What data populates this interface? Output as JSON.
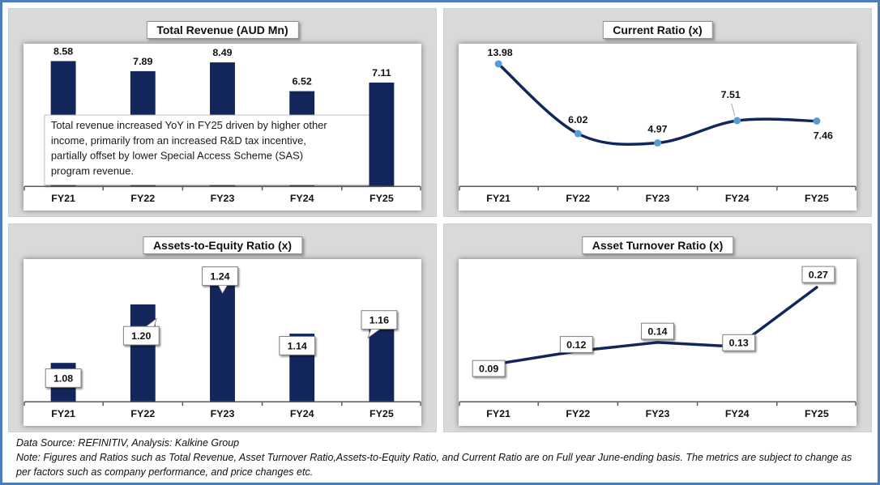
{
  "colors": {
    "navy": "#12265c",
    "marker_blue": "#5b9bd5",
    "panel_gray": "#d9d9d9",
    "outer_border_blue": "#4a7ebb",
    "axis_gray": "#595959"
  },
  "footer": {
    "source_line": "Data Source: REFINITIV, Analysis: Kalkine Group",
    "note_line": "Note: Figures and Ratios such as Total Revenue, Asset Turnover Ratio,Assets-to-Equity Ratio, and Current Ratio are on Full year June-ending basis. The metrics are subject to change as per factors such as company performance, and price changes etc."
  },
  "chart_data": [
    {
      "id": "total-revenue",
      "type": "bar",
      "title": "Total Revenue (AUD Mn)",
      "categories": [
        "FY21",
        "FY22",
        "FY23",
        "FY24",
        "FY25"
      ],
      "values": [
        8.58,
        7.89,
        8.49,
        6.52,
        7.11
      ],
      "labels": [
        "8.58",
        "7.89",
        "8.49",
        "6.52",
        "7.11"
      ],
      "ylim": [
        0,
        9
      ],
      "label_style": "plain",
      "grid": false,
      "legend": false,
      "annotation": "Total revenue increased YoY in FY25 driven by higher other income, primarily from an increased R&D tax incentive, partially offset by lower Special Access Scheme (SAS) program revenue."
    },
    {
      "id": "current-ratio",
      "type": "line",
      "title": "Current Ratio (x)",
      "categories": [
        "FY21",
        "FY22",
        "FY23",
        "FY24",
        "FY25"
      ],
      "values": [
        13.98,
        6.02,
        4.97,
        7.51,
        7.46
      ],
      "labels": [
        "13.98",
        "6.02",
        "4.97",
        "7.51",
        "7.46"
      ],
      "ylim": [
        0,
        15
      ],
      "smooth": true,
      "markers": true,
      "label_style": "plain",
      "grid": false,
      "legend": false
    },
    {
      "id": "assets-to-equity",
      "type": "bar",
      "title": "Assets-to-Equity Ratio (x)",
      "categories": [
        "FY21",
        "FY22",
        "FY23",
        "FY24",
        "FY25"
      ],
      "values": [
        1.08,
        1.2,
        1.24,
        1.14,
        1.16
      ],
      "labels": [
        "1.08",
        "1.20",
        "1.24",
        "1.14",
        "1.16"
      ],
      "ylim": [
        1.0,
        1.27
      ],
      "label_style": "callout",
      "grid": false,
      "legend": false
    },
    {
      "id": "asset-turnover",
      "type": "line",
      "title": "Asset Turnover Ratio (x)",
      "categories": [
        "FY21",
        "FY22",
        "FY23",
        "FY24",
        "FY25"
      ],
      "values": [
        0.09,
        0.12,
        0.14,
        0.13,
        0.27
      ],
      "labels": [
        "0.09",
        "0.12",
        "0.14",
        "0.13",
        "0.27"
      ],
      "ylim": [
        0,
        0.31
      ],
      "smooth": false,
      "markers": false,
      "label_style": "box",
      "grid": false,
      "legend": false
    }
  ]
}
